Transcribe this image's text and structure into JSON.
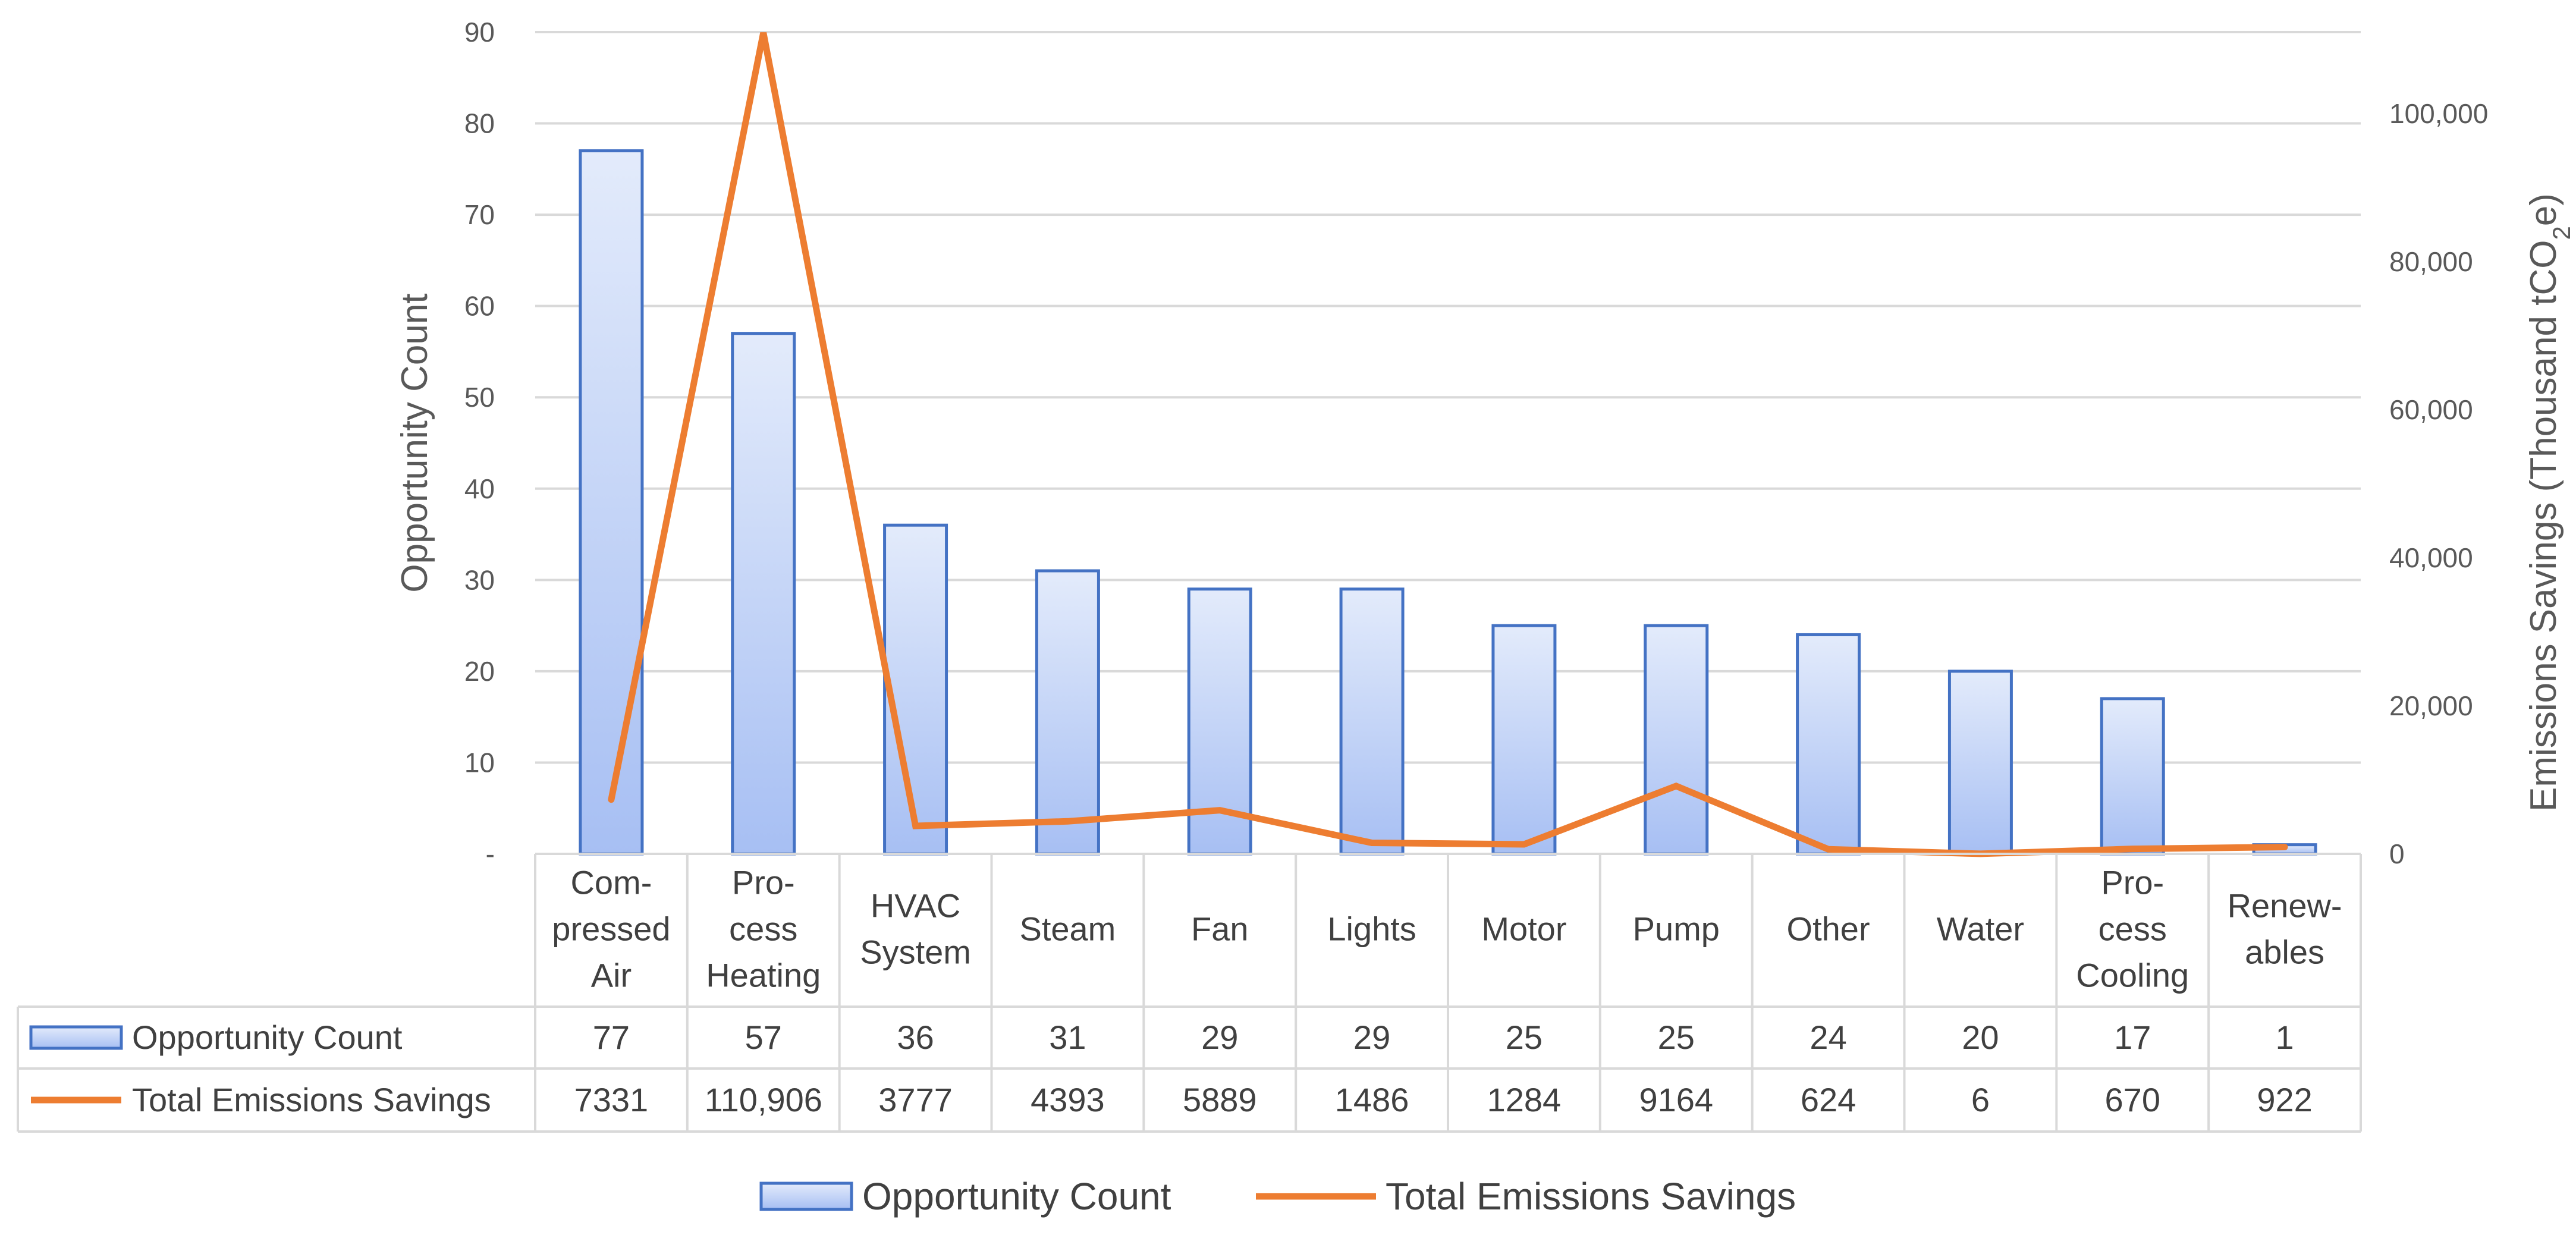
{
  "chart_data": {
    "type": "bar",
    "categories": [
      [
        "Com-",
        "pressed",
        "Air"
      ],
      [
        "Pro-",
        "cess",
        "Heating"
      ],
      [
        "HVAC",
        "System"
      ],
      [
        "Steam"
      ],
      [
        "Fan"
      ],
      [
        "Lights"
      ],
      [
        "Motor"
      ],
      [
        "Pump"
      ],
      [
        "Other"
      ],
      [
        "Water"
      ],
      [
        "Pro-",
        "cess",
        "Cooling"
      ],
      [
        "Renew-",
        "ables"
      ]
    ],
    "series": [
      {
        "name": "Opportunity Count",
        "type": "bar",
        "axis": "left",
        "values": [
          77,
          57,
          36,
          31,
          29,
          29,
          25,
          25,
          24,
          20,
          17,
          1
        ],
        "labels": [
          "77",
          "57",
          "36",
          "31",
          "29",
          "29",
          "25",
          "25",
          "24",
          "20",
          "17",
          "1"
        ],
        "color": "#4472C4"
      },
      {
        "name": "Total Emissions Savings",
        "type": "line",
        "axis": "right",
        "values": [
          7331,
          110906,
          3777,
          4393,
          5889,
          1486,
          1284,
          9164,
          624,
          6,
          670,
          922
        ],
        "labels": [
          "7331",
          "110,906",
          "3777",
          "4393",
          "5889",
          "1486",
          "1284",
          "9164",
          "624",
          "6",
          "670",
          "922"
        ],
        "color": "#ED7D31"
      }
    ],
    "ylabel_left": "Opportunity Count",
    "ylabel_right_main": "Emissions Savings (Thousand tCO",
    "ylabel_right_sub": "2",
    "ylabel_right_end": "e)",
    "ylim_left": [
      0,
      90
    ],
    "ylim_right": [
      0,
      111000
    ],
    "yticks_left": [
      0,
      10,
      20,
      30,
      40,
      50,
      60,
      70,
      80,
      90
    ],
    "yticks_left_labels": [
      "-",
      "10",
      "20",
      "30",
      "40",
      "50",
      "60",
      "70",
      "80",
      "90"
    ],
    "yticks_right": [
      0,
      20000,
      40000,
      60000,
      80000,
      100000
    ],
    "yticks_right_labels": [
      "0",
      "20,000",
      "40,000",
      "60,000",
      "80,000",
      "100,000"
    ],
    "grid": true,
    "legend_position": "bottom",
    "data_table": true
  }
}
